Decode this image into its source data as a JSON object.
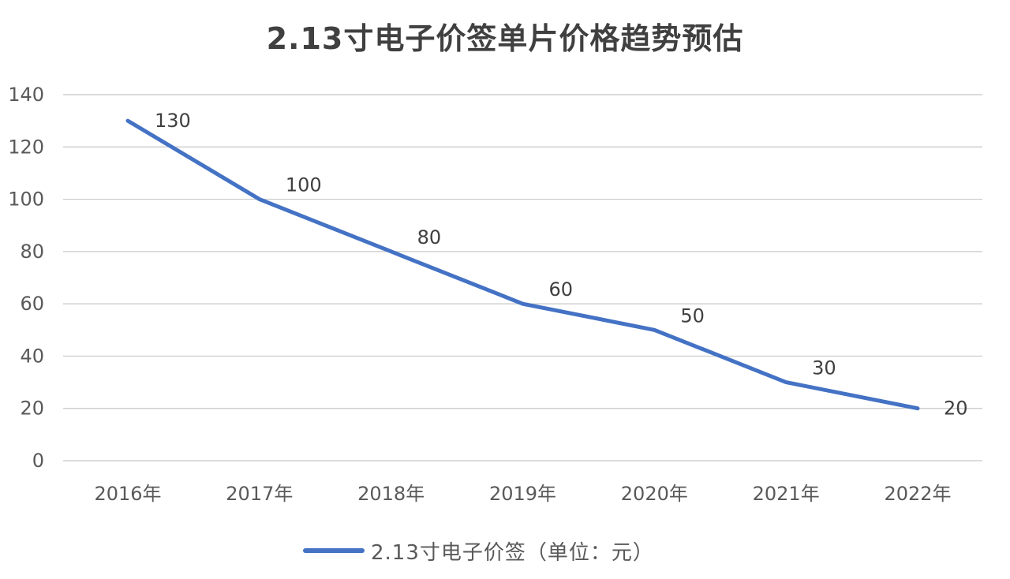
{
  "chart_data": {
    "type": "line",
    "title": "2.13寸电子价签单片价格趋势预估",
    "categories": [
      "2016年",
      "2017年",
      "2018年",
      "2019年",
      "2020年",
      "2021年",
      "2022年"
    ],
    "series": [
      {
        "name": "2.13寸电子价签（单位：元）",
        "values": [
          130,
          100,
          80,
          60,
          50,
          30,
          20
        ],
        "color": "#4472c4"
      }
    ],
    "ylim": [
      0,
      140
    ],
    "yticks": [
      0,
      20,
      40,
      60,
      80,
      100,
      120,
      140
    ],
    "grid": true,
    "legend_position": "bottom"
  }
}
